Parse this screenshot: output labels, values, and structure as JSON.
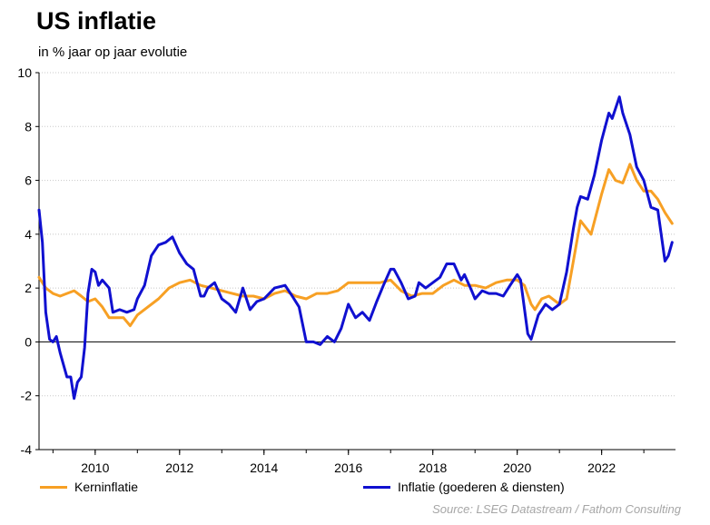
{
  "chart_data": {
    "type": "line",
    "title": "US inflatie",
    "subtitle": "in % jaar op jaar evolutie",
    "xlabel": "",
    "ylabel": "",
    "xlim": [
      2008.67,
      2023.75
    ],
    "ylim": [
      -4,
      10
    ],
    "x_ticks": [
      2010,
      2012,
      2014,
      2016,
      2018,
      2020,
      2022
    ],
    "y_ticks": [
      -4,
      -2,
      0,
      2,
      4,
      6,
      8,
      10
    ],
    "grid": "horizontal-dotted",
    "legend": "bottom",
    "series": [
      {
        "name": "Kerninflatie",
        "color": "#f7a024",
        "points": [
          [
            2008.67,
            2.4
          ],
          [
            2008.83,
            2.0
          ],
          [
            2009.0,
            1.8
          ],
          [
            2009.17,
            1.7
          ],
          [
            2009.33,
            1.8
          ],
          [
            2009.5,
            1.9
          ],
          [
            2009.67,
            1.7
          ],
          [
            2009.83,
            1.5
          ],
          [
            2010.0,
            1.6
          ],
          [
            2010.17,
            1.3
          ],
          [
            2010.33,
            0.9
          ],
          [
            2010.5,
            0.9
          ],
          [
            2010.67,
            0.9
          ],
          [
            2010.83,
            0.6
          ],
          [
            2011.0,
            1.0
          ],
          [
            2011.25,
            1.3
          ],
          [
            2011.5,
            1.6
          ],
          [
            2011.75,
            2.0
          ],
          [
            2012.0,
            2.2
          ],
          [
            2012.25,
            2.3
          ],
          [
            2012.5,
            2.1
          ],
          [
            2012.75,
            2.0
          ],
          [
            2013.0,
            1.9
          ],
          [
            2013.25,
            1.8
          ],
          [
            2013.5,
            1.7
          ],
          [
            2013.75,
            1.7
          ],
          [
            2014.0,
            1.6
          ],
          [
            2014.25,
            1.8
          ],
          [
            2014.5,
            1.9
          ],
          [
            2014.75,
            1.7
          ],
          [
            2015.0,
            1.6
          ],
          [
            2015.25,
            1.8
          ],
          [
            2015.5,
            1.8
          ],
          [
            2015.75,
            1.9
          ],
          [
            2016.0,
            2.2
          ],
          [
            2016.25,
            2.2
          ],
          [
            2016.5,
            2.2
          ],
          [
            2016.75,
            2.2
          ],
          [
            2017.0,
            2.3
          ],
          [
            2017.25,
            1.9
          ],
          [
            2017.5,
            1.7
          ],
          [
            2017.75,
            1.8
          ],
          [
            2018.0,
            1.8
          ],
          [
            2018.25,
            2.1
          ],
          [
            2018.5,
            2.3
          ],
          [
            2018.75,
            2.1
          ],
          [
            2019.0,
            2.1
          ],
          [
            2019.25,
            2.0
          ],
          [
            2019.5,
            2.2
          ],
          [
            2019.75,
            2.3
          ],
          [
            2020.0,
            2.3
          ],
          [
            2020.17,
            2.1
          ],
          [
            2020.33,
            1.4
          ],
          [
            2020.42,
            1.2
          ],
          [
            2020.58,
            1.6
          ],
          [
            2020.75,
            1.7
          ],
          [
            2021.0,
            1.4
          ],
          [
            2021.17,
            1.6
          ],
          [
            2021.33,
            3.0
          ],
          [
            2021.5,
            4.5
          ],
          [
            2021.75,
            4.0
          ],
          [
            2022.0,
            5.5
          ],
          [
            2022.17,
            6.4
          ],
          [
            2022.33,
            6.0
          ],
          [
            2022.5,
            5.9
          ],
          [
            2022.67,
            6.6
          ],
          [
            2022.83,
            6.0
          ],
          [
            2023.0,
            5.6
          ],
          [
            2023.17,
            5.6
          ],
          [
            2023.33,
            5.3
          ],
          [
            2023.5,
            4.8
          ],
          [
            2023.67,
            4.4
          ]
        ]
      },
      {
        "name": "Inflatie (goederen & diensten)",
        "color": "#1010d0",
        "points": [
          [
            2008.67,
            4.9
          ],
          [
            2008.75,
            3.7
          ],
          [
            2008.83,
            1.1
          ],
          [
            2008.92,
            0.1
          ],
          [
            2009.0,
            0.0
          ],
          [
            2009.08,
            0.2
          ],
          [
            2009.17,
            -0.4
          ],
          [
            2009.33,
            -1.3
          ],
          [
            2009.42,
            -1.3
          ],
          [
            2009.5,
            -2.1
          ],
          [
            2009.58,
            -1.5
          ],
          [
            2009.67,
            -1.3
          ],
          [
            2009.75,
            -0.2
          ],
          [
            2009.83,
            1.8
          ],
          [
            2009.92,
            2.7
          ],
          [
            2010.0,
            2.6
          ],
          [
            2010.08,
            2.1
          ],
          [
            2010.17,
            2.3
          ],
          [
            2010.33,
            2.0
          ],
          [
            2010.42,
            1.1
          ],
          [
            2010.58,
            1.2
          ],
          [
            2010.75,
            1.1
          ],
          [
            2010.92,
            1.2
          ],
          [
            2011.0,
            1.6
          ],
          [
            2011.17,
            2.1
          ],
          [
            2011.33,
            3.2
          ],
          [
            2011.5,
            3.6
          ],
          [
            2011.67,
            3.7
          ],
          [
            2011.83,
            3.9
          ],
          [
            2012.0,
            3.3
          ],
          [
            2012.17,
            2.9
          ],
          [
            2012.33,
            2.7
          ],
          [
            2012.5,
            1.7
          ],
          [
            2012.58,
            1.7
          ],
          [
            2012.67,
            2.0
          ],
          [
            2012.83,
            2.2
          ],
          [
            2013.0,
            1.6
          ],
          [
            2013.17,
            1.4
          ],
          [
            2013.33,
            1.1
          ],
          [
            2013.5,
            2.0
          ],
          [
            2013.67,
            1.2
          ],
          [
            2013.83,
            1.5
          ],
          [
            2014.0,
            1.6
          ],
          [
            2014.25,
            2.0
          ],
          [
            2014.5,
            2.1
          ],
          [
            2014.67,
            1.7
          ],
          [
            2014.83,
            1.3
          ],
          [
            2015.0,
            0.0
          ],
          [
            2015.17,
            0.0
          ],
          [
            2015.33,
            -0.1
          ],
          [
            2015.5,
            0.2
          ],
          [
            2015.67,
            0.0
          ],
          [
            2015.83,
            0.5
          ],
          [
            2016.0,
            1.4
          ],
          [
            2016.17,
            0.9
          ],
          [
            2016.33,
            1.1
          ],
          [
            2016.5,
            0.8
          ],
          [
            2016.67,
            1.5
          ],
          [
            2016.83,
            2.1
          ],
          [
            2017.0,
            2.7
          ],
          [
            2017.08,
            2.7
          ],
          [
            2017.25,
            2.2
          ],
          [
            2017.42,
            1.6
          ],
          [
            2017.58,
            1.7
          ],
          [
            2017.67,
            2.2
          ],
          [
            2017.83,
            2.0
          ],
          [
            2018.0,
            2.2
          ],
          [
            2018.17,
            2.4
          ],
          [
            2018.33,
            2.9
          ],
          [
            2018.5,
            2.9
          ],
          [
            2018.67,
            2.3
          ],
          [
            2018.75,
            2.5
          ],
          [
            2018.92,
            1.9
          ],
          [
            2019.0,
            1.6
          ],
          [
            2019.17,
            1.9
          ],
          [
            2019.33,
            1.8
          ],
          [
            2019.5,
            1.8
          ],
          [
            2019.67,
            1.7
          ],
          [
            2019.83,
            2.1
          ],
          [
            2020.0,
            2.5
          ],
          [
            2020.08,
            2.3
          ],
          [
            2020.25,
            0.3
          ],
          [
            2020.33,
            0.1
          ],
          [
            2020.5,
            1.0
          ],
          [
            2020.67,
            1.4
          ],
          [
            2020.83,
            1.2
          ],
          [
            2021.0,
            1.4
          ],
          [
            2021.17,
            2.6
          ],
          [
            2021.33,
            4.2
          ],
          [
            2021.42,
            5.0
          ],
          [
            2021.5,
            5.4
          ],
          [
            2021.67,
            5.3
          ],
          [
            2021.83,
            6.2
          ],
          [
            2022.0,
            7.5
          ],
          [
            2022.17,
            8.5
          ],
          [
            2022.25,
            8.3
          ],
          [
            2022.42,
            9.1
          ],
          [
            2022.5,
            8.5
          ],
          [
            2022.67,
            7.7
          ],
          [
            2022.83,
            6.5
          ],
          [
            2023.0,
            6.0
          ],
          [
            2023.17,
            5.0
          ],
          [
            2023.33,
            4.9
          ],
          [
            2023.5,
            3.0
          ],
          [
            2023.58,
            3.2
          ],
          [
            2023.67,
            3.7
          ]
        ]
      }
    ]
  },
  "source": "Source: LSEG Datastream / Fathom Consulting"
}
